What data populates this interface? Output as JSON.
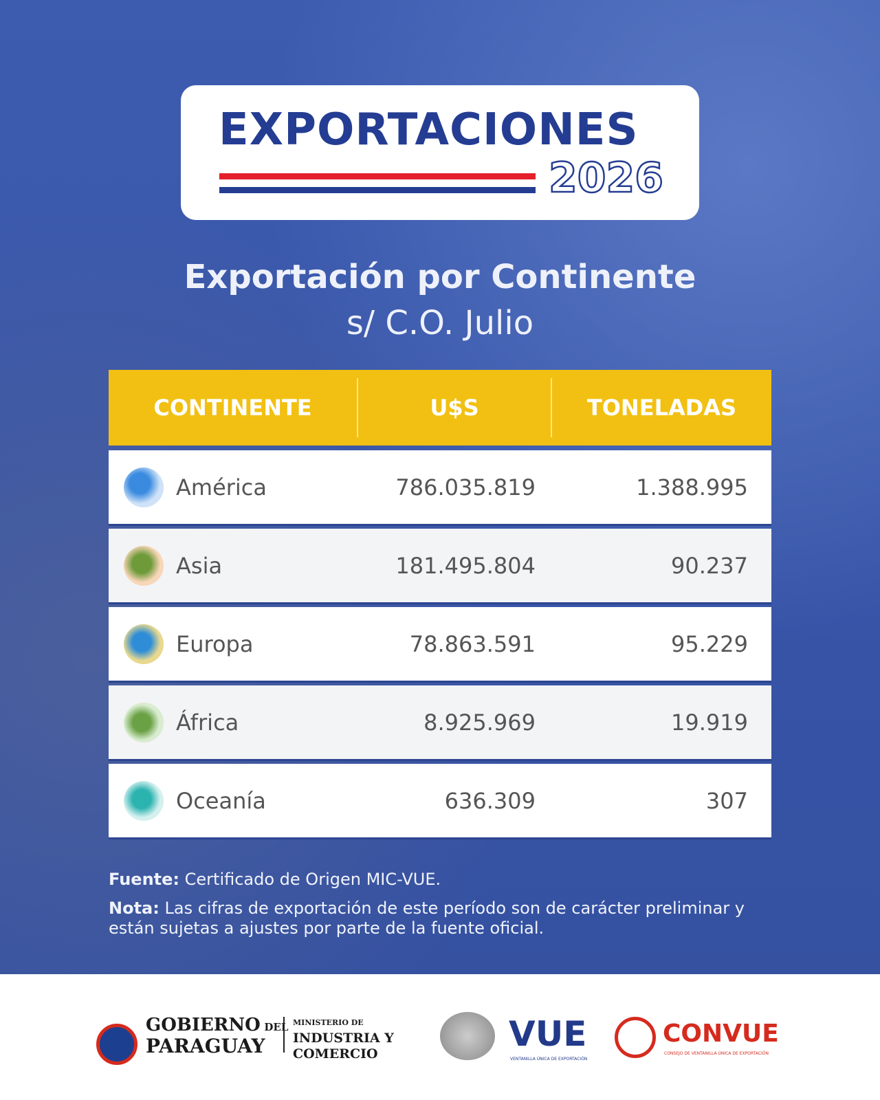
{
  "header": {
    "title": "EXPORTACIONES",
    "year": "2026"
  },
  "subtitle": {
    "title": "Exportación por Continente",
    "period": "s/ C.O. Julio"
  },
  "table": {
    "columns": [
      "CONTINENTE",
      "U$S",
      "TONELADAS"
    ],
    "rows": [
      [
        "América",
        "786.035.819",
        "1.388.995"
      ],
      [
        "Asia",
        "181.495.804",
        "90.237"
      ],
      [
        "Europa",
        "78.863.591",
        "95.229"
      ],
      [
        "África",
        "8.925.969",
        "19.919"
      ],
      [
        "Oceanía",
        "636.309",
        "307"
      ]
    ]
  },
  "notes": {
    "source_label": "Fuente:",
    "source_text": "Certificado de Origen MIC-VUE.",
    "note_label": "Nota:",
    "note_text": "Las cifras de exportación de este período son de carácter preliminar y están sujetas a ajustes por parte de la fuente oficial."
  },
  "footer": {
    "gov_1": "GOBIERNO",
    "gov_del": "DEL",
    "gov_2": "PARAGUAY",
    "ministry_1": "MINISTERIO DE",
    "ministry_2": "INDUSTRIA Y",
    "ministry_3": "COMERCIO",
    "vue": "VUE",
    "vue_sub": "VENTANILLA ÚNICA DE EXPORTACIÓN",
    "convue": "CONVUE",
    "convue_sub": "CONSEJO DE VENTANILLA ÚNICA DE EXPORTACIÓN"
  }
}
